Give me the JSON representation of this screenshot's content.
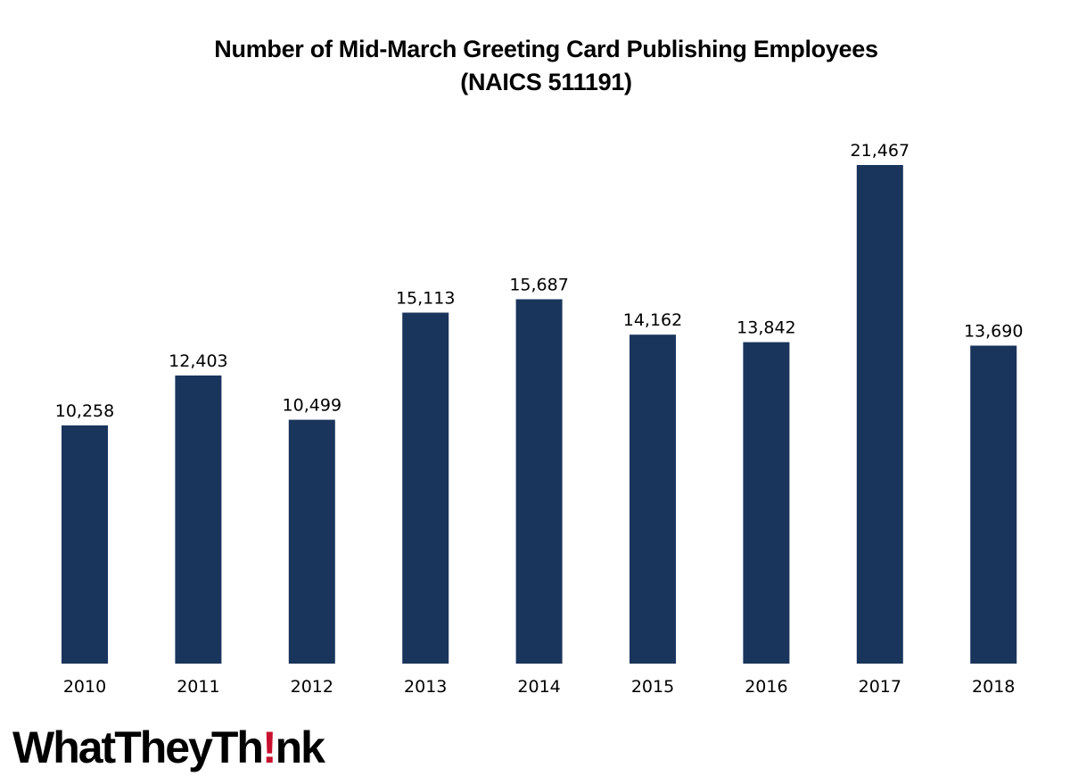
{
  "chart_data": {
    "type": "bar",
    "title": "Number of Mid-March Greeting Card Publishing Employees",
    "subtitle": "(NAICS 511191)",
    "xlabel": "",
    "ylabel": "",
    "categories": [
      "2010",
      "2011",
      "2012",
      "2013",
      "2014",
      "2015",
      "2016",
      "2017",
      "2018"
    ],
    "values": [
      10258,
      12403,
      10499,
      15113,
      15687,
      14162,
      13842,
      21467,
      13690
    ],
    "value_labels": [
      "10,258",
      "12,403",
      "10,499",
      "15,113",
      "15,687",
      "14,162",
      "13,842",
      "21,467",
      "13,690"
    ],
    "ylim": [
      0,
      21467
    ],
    "grid": false,
    "legend": "none",
    "bar_color": "#1a355c"
  },
  "logo": {
    "part1": "WhatTheyTh",
    "part2": "!",
    "part3": "nk",
    "accent_color": "#c8102e"
  }
}
